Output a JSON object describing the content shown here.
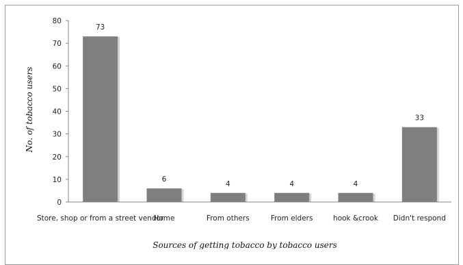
{
  "chart_data": {
    "type": "bar",
    "categories": [
      "Store, shop or from a street vendor",
      "Home",
      "From others",
      "From elders",
      "hook &crook",
      "Didn't respond"
    ],
    "values": [
      73,
      6,
      4,
      4,
      4,
      33
    ],
    "xlabel": "Sources of getting tobacco by tobacco users",
    "ylabel": "No. of tobacco users",
    "ylim": [
      0,
      80
    ],
    "yticks": [
      0,
      10,
      20,
      30,
      40,
      50,
      60,
      70,
      80
    ],
    "grid": false,
    "legend": "none",
    "bar_color": "#7f7f7f",
    "bar_shadow_color": "#d4d4d4",
    "axis_color": "#868686"
  }
}
